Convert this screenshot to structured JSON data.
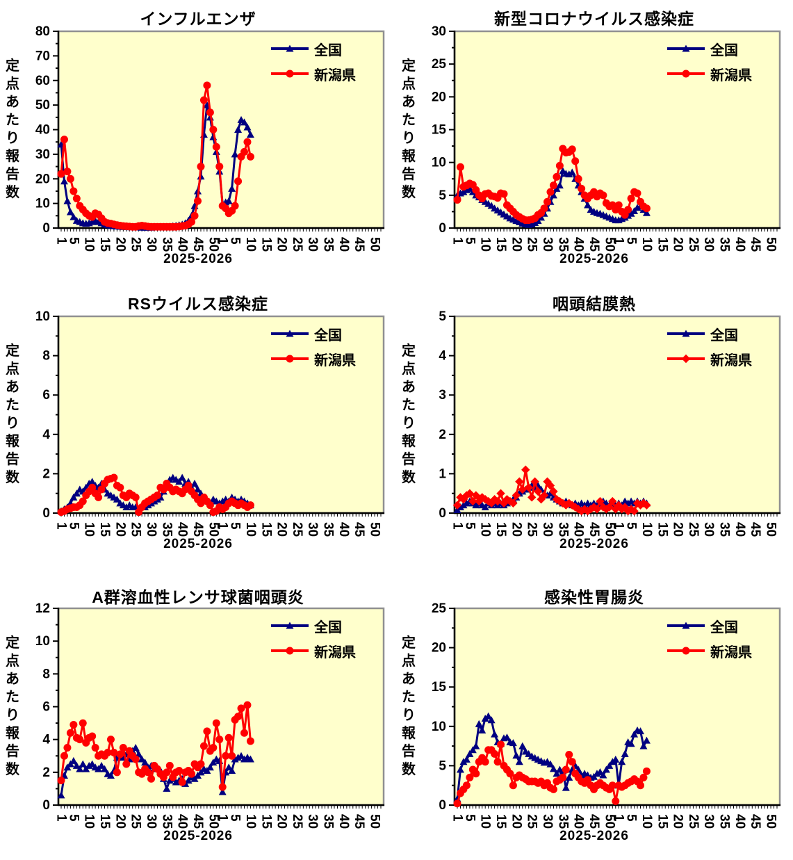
{
  "colors": {
    "plot_bg": "#FFFFCC",
    "plot_border": "#909090",
    "axis": "#000000",
    "national": "#000080",
    "niigata": "#FF0000"
  },
  "axis": {
    "ylabel": "定点あたり報告数",
    "xlabel": "2025-2026"
  },
  "x_axis": {
    "total_weeks": 104,
    "tick_labels": [
      "1",
      "5",
      "10",
      "15",
      "20",
      "25",
      "30",
      "35",
      "40",
      "45",
      "50",
      "1",
      "5",
      "10",
      "15",
      "20",
      "25",
      "30",
      "35",
      "40",
      "45",
      "50"
    ],
    "tick_week_indices": [
      0,
      4,
      9,
      14,
      19,
      24,
      29,
      34,
      39,
      44,
      49,
      52,
      56,
      61,
      66,
      71,
      76,
      81,
      86,
      91,
      96,
      101
    ]
  },
  "chart_data": [
    {
      "type": "line",
      "title": "インフルエンザ",
      "xlabel": "2025-2026",
      "ylabel": "定点あたり報告数",
      "ylim": [
        0,
        80
      ],
      "ytick_step": 10,
      "legend_position": "top-right-inside",
      "series": [
        {
          "name": "全国",
          "color": "#000080",
          "marker": "triangle",
          "values": [
            34,
            19,
            11,
            6.5,
            4.5,
            3,
            2.5,
            2,
            1.8,
            2,
            2.5,
            3,
            2.5,
            2,
            1.5,
            1.2,
            1,
            0.8,
            0.7,
            0.6,
            0.5,
            0.5,
            0.4,
            0.4,
            0.3,
            0.3,
            0.2,
            0.2,
            0.2,
            0.2,
            0.3,
            0.3,
            0.4,
            0.4,
            0.5,
            0.6,
            0.8,
            1,
            1.2,
            1.5,
            2,
            3,
            5,
            9,
            15,
            21,
            38,
            50,
            45,
            37,
            31,
            23,
            10,
            10.5,
            11,
            16,
            30,
            40,
            44,
            43,
            41,
            38
          ]
        },
        {
          "name": "新潟県",
          "color": "#FF0000",
          "marker": "circle",
          "values": [
            22,
            36,
            23,
            20,
            15,
            12,
            9,
            7.5,
            6,
            5,
            4.5,
            6,
            5.5,
            4,
            2.5,
            2,
            1.8,
            1.5,
            1.2,
            1,
            0.8,
            0.7,
            0.6,
            0.5,
            0.5,
            0.8,
            1,
            0.8,
            0.6,
            0.5,
            0.5,
            0.5,
            0.5,
            0.5,
            0.5,
            0.5,
            0.5,
            0.5,
            0.6,
            0.8,
            1,
            1.5,
            2.5,
            5,
            11,
            25,
            52,
            58,
            47,
            40,
            33,
            25,
            9,
            8,
            6,
            7,
            9,
            19,
            29,
            31,
            35,
            29
          ]
        }
      ]
    },
    {
      "type": "line",
      "title": "新型コロナウイルス感染症",
      "xlabel": "2025-2026",
      "ylabel": "定点あたり報告数",
      "ylim": [
        0,
        30
      ],
      "ytick_step": 5,
      "legend_position": "top-right-inside",
      "series": [
        {
          "name": "全国",
          "color": "#000080",
          "marker": "triangle",
          "values": [
            5,
            5.3,
            5.5,
            5.8,
            6,
            5.5,
            5,
            4.7,
            4.3,
            4,
            3.7,
            3.4,
            3,
            2.7,
            2.4,
            2.1,
            1.8,
            1.5,
            1.3,
            1.1,
            0.9,
            0.7,
            0.6,
            0.5,
            0.6,
            0.8,
            1.1,
            1.6,
            2.2,
            3,
            4,
            5,
            6,
            6.5,
            8.7,
            8.3,
            8.2,
            8.5,
            7.5,
            6.5,
            5.5,
            4.5,
            3.5,
            2.8,
            2.5,
            2.3,
            2.2,
            2,
            1.8,
            1.6,
            1.4,
            1.2,
            1.2,
            1.4,
            1.6,
            1.9,
            2.2,
            2.6,
            3.1,
            3.3,
            2.8,
            2.3
          ]
        },
        {
          "name": "新潟県",
          "color": "#FF0000",
          "marker": "circle",
          "values": [
            4.3,
            9.3,
            6.3,
            6.5,
            6.8,
            6.6,
            5.8,
            5,
            4.5,
            5.2,
            5.3,
            4.9,
            4.8,
            4.6,
            5.3,
            5.2,
            3.5,
            3,
            2.5,
            2,
            1.7,
            1.4,
            1.2,
            1.2,
            1.3,
            1.5,
            2,
            2.3,
            3,
            4,
            5.5,
            6.5,
            7.8,
            9.5,
            12.1,
            11.5,
            11.6,
            12,
            10.2,
            7.5,
            6,
            5,
            4.5,
            5,
            5.5,
            4.8,
            5.3,
            5,
            3.8,
            3.3,
            3.5,
            2.8,
            3.5,
            2.5,
            2,
            2.8,
            4.5,
            5.5,
            5.3,
            4,
            3.3,
            3
          ]
        }
      ]
    },
    {
      "type": "line",
      "title": "RSウイルス感染症",
      "xlabel": "2025-2026",
      "ylabel": "定点あたり報告数",
      "ylim": [
        0,
        10
      ],
      "ytick_step": 2,
      "legend_position": "top-right-inside",
      "series": [
        {
          "name": "全国",
          "color": "#000080",
          "marker": "triangle",
          "values": [
            0.1,
            0.2,
            0.3,
            0.5,
            0.8,
            1,
            1.2,
            1.1,
            1.3,
            1.5,
            1.6,
            1.4,
            1.3,
            1.5,
            1.2,
            1,
            0.9,
            0.8,
            0.7,
            0.5,
            0.4,
            0.3,
            0.4,
            0.3,
            0.3,
            0.2,
            0.3,
            0.3,
            0.4,
            0.5,
            0.6,
            0.7,
            0.8,
            1.1,
            1.4,
            1.7,
            1.8,
            1.7,
            1.6,
            1.8,
            1.5,
            1.6,
            1.3,
            1.5,
            1.2,
            1,
            0.8,
            0.6,
            0.5,
            0.7,
            0.6,
            0.5,
            0.6,
            0.7,
            0.6,
            0.8,
            0.7,
            0.6,
            0.7,
            0.6,
            0.5,
            0.4
          ]
        },
        {
          "name": "新潟県",
          "color": "#FF0000",
          "marker": "circle",
          "values": [
            0.05,
            0.1,
            0.2,
            0.25,
            0.3,
            0.3,
            0.4,
            0.6,
            0.9,
            1.1,
            1.3,
            1,
            0.8,
            1.2,
            1.5,
            1.7,
            1.75,
            1.8,
            1.4,
            1.3,
            0.9,
            0.8,
            1,
            0.9,
            0.8,
            0.05,
            0.3,
            0.5,
            0.6,
            0.7,
            0.8,
            0.9,
            1.3,
            1.2,
            1.5,
            1.3,
            1.1,
            1.2,
            1.1,
            1,
            1.2,
            1.4,
            1.1,
            0.9,
            0.7,
            0.5,
            0.8,
            0.6,
            0.4,
            0.05,
            0.1,
            0.3,
            0.2,
            0.3,
            0.5,
            0.6,
            0.5,
            0.4,
            0.5,
            0.4,
            0.3,
            0.4
          ]
        }
      ]
    },
    {
      "type": "line",
      "title": "咽頭結膜熱",
      "xlabel": "2025-2026",
      "ylabel": "定点あたり報告数",
      "ylim": [
        0,
        5
      ],
      "ytick_step": 1,
      "legend_position": "top-right-inside",
      "series": [
        {
          "name": "全国",
          "color": "#000080",
          "marker": "triangle",
          "values": [
            0.08,
            0.15,
            0.2,
            0.25,
            0.3,
            0.25,
            0.2,
            0.25,
            0.2,
            0.15,
            0.25,
            0.2,
            0.25,
            0.2,
            0.25,
            0.2,
            0.25,
            0.3,
            0.35,
            0.4,
            0.5,
            0.55,
            0.6,
            0.65,
            0.7,
            0.65,
            0.7,
            0.6,
            0.5,
            0.45,
            0.5,
            0.4,
            0.35,
            0.3,
            0.25,
            0.3,
            0.25,
            0.2,
            0.25,
            0.2,
            0.25,
            0.2,
            0.25,
            0.2,
            0.25,
            0.2,
            0.25,
            0.3,
            0.25,
            0.2,
            0.25,
            0.2,
            0.25,
            0.2,
            0.3,
            0.25,
            0.3,
            0.25,
            0.3,
            0.25,
            0.3,
            0.25
          ]
        },
        {
          "name": "新潟県",
          "color": "#FF0000",
          "marker": "diamond",
          "values": [
            0.2,
            0.4,
            0.35,
            0.45,
            0.5,
            0.3,
            0.45,
            0.3,
            0.4,
            0.35,
            0.3,
            0.25,
            0.35,
            0.3,
            0.5,
            0.25,
            0.35,
            0.3,
            0.25,
            0.45,
            0.8,
            0.6,
            1.1,
            0.65,
            0.4,
            0.8,
            0.55,
            0.35,
            0.45,
            0.8,
            0.7,
            0.55,
            0.35,
            0.3,
            0.25,
            0.2,
            0.25,
            0.2,
            0.15,
            0.1,
            0.05,
            0.1,
            0.05,
            0.1,
            0.15,
            0.1,
            0.3,
            0.15,
            0.1,
            0.15,
            0.3,
            0.1,
            0.2,
            0.1,
            0.15,
            0.05,
            0.1,
            0.05,
            0.25,
            0.2,
            0.25,
            0.2
          ]
        }
      ]
    },
    {
      "type": "line",
      "title": "A群溶血性レンサ球菌咽頭炎",
      "xlabel": "2025-2026",
      "ylabel": "定点あたり報告数",
      "ylim": [
        0,
        12
      ],
      "ytick_step": 2,
      "legend_position": "top-right-inside",
      "series": [
        {
          "name": "全国",
          "color": "#000080",
          "marker": "triangle",
          "values": [
            0.6,
            1.8,
            2.3,
            2.5,
            2.7,
            2.4,
            2.2,
            2.5,
            2.2,
            2.4,
            2.5,
            2.3,
            2.2,
            2.4,
            2.2,
            1.9,
            1.8,
            2.1,
            2.9,
            3,
            2.9,
            3.1,
            2.8,
            3.3,
            3.5,
            3.1,
            2.8,
            2.6,
            2.3,
            2.4,
            2.2,
            2.3,
            2.1,
            1.6,
            1,
            1.5,
            1.6,
            1.4,
            1.5,
            1.6,
            1.3,
            1.5,
            1.7,
            1.6,
            1.8,
            2,
            2.2,
            2.1,
            2.3,
            2.6,
            2.8,
            2.7,
            0.8,
            2,
            2.3,
            2.1,
            2.8,
            2.9,
            3,
            2.8,
            2.9,
            2.8
          ]
        },
        {
          "name": "新潟県",
          "color": "#FF0000",
          "marker": "circle",
          "values": [
            1.5,
            3,
            3.5,
            4.4,
            4.9,
            4.1,
            4,
            5,
            3.8,
            4.1,
            4.2,
            3.5,
            3,
            3.1,
            3,
            3.2,
            4,
            3.2,
            2,
            3.1,
            3.5,
            2.5,
            3.3,
            3,
            2.8,
            2,
            1.9,
            2.2,
            2,
            1.6,
            2.4,
            2.2,
            1.9,
            1.7,
            2,
            2.4,
            1.7,
            2,
            2.1,
            1.4,
            2,
            2.1,
            1.9,
            2.5,
            2.3,
            2.5,
            3.6,
            4.5,
            3.3,
            3.5,
            5,
            4,
            1.1,
            3,
            4.1,
            3,
            5.2,
            5.4,
            5.9,
            4.4,
            6.1,
            3.9
          ]
        }
      ]
    },
    {
      "type": "line",
      "title": "感染性胃腸炎",
      "xlabel": "2025-2026",
      "ylabel": "定点あたり報告数",
      "ylim": [
        0,
        25
      ],
      "ytick_step": 5,
      "legend_position": "top-right-inside",
      "series": [
        {
          "name": "全国",
          "color": "#000080",
          "marker": "triangle",
          "values": [
            0.8,
            4.5,
            5.5,
            5.8,
            6.5,
            7,
            7.5,
            10.3,
            9.5,
            11,
            11.3,
            10.8,
            9,
            8,
            7.8,
            8.5,
            8.6,
            8,
            7.9,
            6.3,
            5.5,
            7.5,
            6.8,
            6.5,
            6.2,
            6,
            5.8,
            5.6,
            5.4,
            5.5,
            5.2,
            4.6,
            4,
            4.5,
            4.3,
            2.2,
            3.5,
            4.5,
            5,
            4.5,
            3.8,
            4,
            3.8,
            3.5,
            3.6,
            4,
            4.2,
            3.8,
            4.5,
            5,
            5.5,
            5.8,
            2.5,
            5.5,
            6.5,
            8,
            7.8,
            9,
            9.5,
            9.4,
            7.5,
            8.2
          ]
        },
        {
          "name": "新潟県",
          "color": "#FF0000",
          "marker": "circle",
          "values": [
            0.2,
            1.5,
            2,
            2.5,
            3.5,
            4.5,
            4,
            5.5,
            6,
            5.5,
            7,
            7,
            6.5,
            5.5,
            7.7,
            5,
            4.5,
            4,
            2.5,
            3.5,
            3.8,
            3.5,
            3.3,
            3,
            3,
            3,
            2.8,
            3,
            2.5,
            2.8,
            2.2,
            2,
            3,
            3.2,
            3.5,
            4.5,
            6.4,
            5.5,
            4,
            3.5,
            3,
            2.8,
            3.2,
            2.5,
            2,
            2.5,
            2.8,
            2.5,
            2.2,
            2,
            2.5,
            0.5,
            2.5,
            2.3,
            2.5,
            2.8,
            3,
            3.3,
            3,
            2.5,
            3.5,
            4.3
          ]
        }
      ]
    }
  ]
}
